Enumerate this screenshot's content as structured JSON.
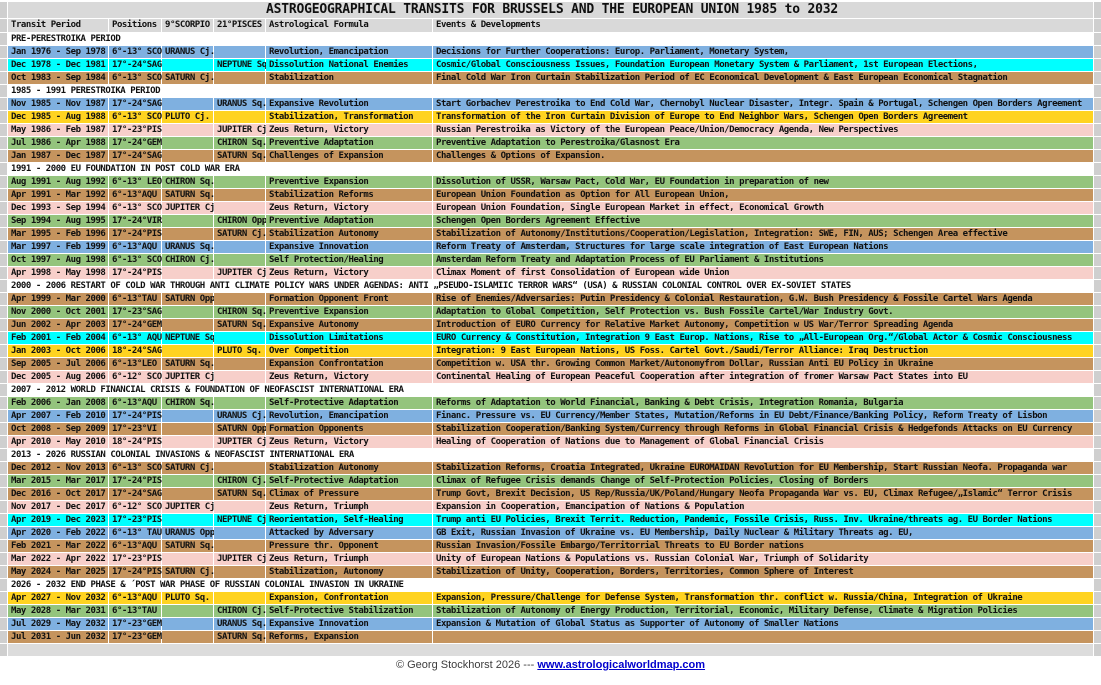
{
  "title": "ASTROGEOGRAPHICAL TRANSITS FOR BRUSSELS AND THE EUROPEAN UNION  1985 to 2032",
  "columns": [
    "Transit Period",
    "Positions",
    "9°SCORPIO",
    "21°PISCES",
    "Astrological Formula",
    "Events & Developments"
  ],
  "palette": {
    "blue": "#7fb0e0",
    "cyan": "#00ffff",
    "tan": "#c5945e",
    "yellow": "#ffd321",
    "pink": "#f7cfca",
    "green": "#94c47d",
    "header_bg": "#d9d9d9",
    "gutter": "#cfcfcf",
    "section_bg": "#ffffff"
  },
  "sections": [
    {
      "label": "PRE-PERESTROIKA PERIOD",
      "rows": [
        {
          "period": "Jan 1976 - Sep 1978",
          "positions": "6°-13° SCO",
          "scorpio": "URANUS Cj.",
          "pisces": "",
          "formula": "Revolution, Emancipation",
          "events": "Decisions for Further Cooperations: Europ. Parliament, Monetary System,",
          "color": "blue"
        },
        {
          "period": "Dec 1978 - Dec 1981",
          "positions": "17°-24°SAG",
          "scorpio": "",
          "pisces": "NEPTUNE Sq.",
          "formula": "Dissolution National Enemies",
          "events": "Cosmic/Global Consciousness Issues, Foundation European Monetary System & Parliament, 1st European Elections,",
          "color": "cyan"
        },
        {
          "period": "Oct 1983 - Sep 1984",
          "positions": "6°-13° SCO",
          "scorpio": "SATURN Cj.",
          "pisces": "",
          "formula": "Stabilization",
          "events": "Final Cold War Iron Curtain Stabilization Period of EC Economical Development & East European Economical Stagnation",
          "color": "tan"
        }
      ]
    },
    {
      "label": "1985 - 1991    PERESTROIKA PERIOD",
      "rows": [
        {
          "period": "Nov 1985 - Nov 1987",
          "positions": "17°-24°SAG",
          "scorpio": "",
          "pisces": "URANUS Sq.",
          "formula": "Expansive Revolution",
          "events": "Start Gorbachev Perestroika to End Cold War, Chernobyl Nuclear Disaster, Integr. Spain & Portugal, Schengen Open Borders Agreement",
          "color": "blue"
        },
        {
          "period": "Dec 1985 - Aug 1988",
          "positions": "6°-13° SCO",
          "scorpio": "PLUTO Cj.",
          "pisces": "",
          "formula": "Stabilization, Transformation",
          "events": "Transformation of the Iron Curtain Division of Europe to End Neighbor Wars, Schengen Open Borders Agreement",
          "color": "yellow"
        },
        {
          "period": "May 1986 - Feb 1987",
          "positions": "17°-23°PIS",
          "scorpio": "",
          "pisces": "JUPITER Cj.",
          "formula": "Zeus Return, Victory",
          "events": "Russian Perestroika as Victory of the European Peace/Union/Democracy Agenda, New Perspectives",
          "color": "pink"
        },
        {
          "period": "Jul 1986 - Apr 1988",
          "positions": "17°-24°GEM",
          "scorpio": "",
          "pisces": "CHIRON Sq.",
          "formula": "Preventive Adaptation",
          "events": "Preventive Adaptation to Perestroika/Glasnost Era",
          "color": "green"
        },
        {
          "period": "Jan 1987 - Dec 1987",
          "positions": "17°-24°SAG",
          "scorpio": "",
          "pisces": "SATURN Sq.",
          "formula": "Challenges of Expansion",
          "events": "Challenges & Options of Expansion.",
          "color": "tan"
        }
      ]
    },
    {
      "label": "1991 - 2000    EU FOUNDATION IN POST COLD WAR ERA",
      "rows": [
        {
          "period": "Aug 1991 - Aug 1992",
          "positions": "6°-13° LEO",
          "scorpio": "CHIRON Sq.",
          "pisces": "",
          "formula": "Preventive Expansion",
          "events": "Dissolution of USSR, Warsaw Pact, Cold War, EU Foundation in preparation of new",
          "color": "green"
        },
        {
          "period": "Apr 1991 - Mar 1992",
          "positions": "6°-13°AQU",
          "scorpio": "SATURN Sq.",
          "pisces": "",
          "formula": "Stabilization Reforms",
          "events": "European Union Foundation as Option for All European Union,",
          "color": "tan"
        },
        {
          "period": "Dec 1993 - Sep 1994",
          "positions": "6°-13° SCO",
          "scorpio": "JUPITER Cj.",
          "pisces": "",
          "formula": "Zeus Return, Victory",
          "events": "European Union Foundation, Single European Market in effect, Economical Growth",
          "color": "pink"
        },
        {
          "period": "Sep 1994 - Aug 1995",
          "positions": "17°-24°VIR",
          "scorpio": "",
          "pisces": "CHIRON Opp.",
          "formula": "Preventive Adaptation",
          "events": "Schengen Open Borders Agreement Effective",
          "color": "green"
        },
        {
          "period": "Mar 1995 - Feb 1996",
          "positions": "17°-24°PIS",
          "scorpio": "",
          "pisces": "SATURN Cj.",
          "formula": "Stabilization Autonomy",
          "events": "Stabilization of Autonomy/Institutions/Cooperation/Legislation, Integration: SWE, FIN, AUS; Schengen Area effective",
          "color": "tan"
        },
        {
          "period": "Mar 1997 - Feb 1999",
          "positions": "6°-13°AQU",
          "scorpio": "URANUS Sq.",
          "pisces": "",
          "formula": "Expansive Innovation",
          "events": "Reform Treaty of Amsterdam, Structures for large scale integration of East European Nations",
          "color": "blue"
        },
        {
          "period": "Oct 1997 - Aug 1998",
          "positions": "6°-13° SCO",
          "scorpio": "CHIRON Cj.",
          "pisces": "",
          "formula": "Self Protection/Healing",
          "events": "Amsterdam Reform Treaty and Adaptation Process of EU Parliament & Institutions",
          "color": "green"
        },
        {
          "period": "Apr 1998 - May 1998",
          "positions": "17°-24°PIS",
          "scorpio": "",
          "pisces": "JUPITER Cj.",
          "formula": "Zeus Return, Victory",
          "events": "Climax Moment of first Consolidation of European wide Union",
          "color": "pink"
        }
      ]
    },
    {
      "label": "2000 - 2006    RESTART OF COLD WAR THROUGH ANTI CLIMATE POLICY WARS UNDER AGENDAS: ANTI „PSEUDO-ISLAMIIC TERROR WARS“ (USA) & RUSSIAN COLONIAL CONTROL OVER EX-SOVIET STATES",
      "rows": [
        {
          "period": "Apr 1999 - Mar 2000",
          "positions": "6°-13°TAU",
          "scorpio": "SATURN Opp.",
          "pisces": "",
          "formula": "Formation Opponent Front",
          "events": "Rise of Enemies/Adversaries: Putin Presidency & Colonial Restauration, G.W. Bush Presidency & Fossile Cartel Wars Agenda",
          "color": "tan"
        },
        {
          "period": "Nov 2000 - Oct 2001",
          "positions": "17°-23°SAG",
          "scorpio": "",
          "pisces": "CHIRON Sq.",
          "formula": "Preventive Expansion",
          "events": "Adaptation to Global Competition, Self Protection vs. Bush Fossile Cartel/War Industry Govt.",
          "color": "green"
        },
        {
          "period": "Jun 2002 - Apr 2003",
          "positions": "17°-24°GEM",
          "scorpio": "",
          "pisces": "SATURN Sq.",
          "formula": "Expansive Autonomy",
          "events": "Introduction of EURO Currency for Relative Market Autonomy, Competition w US War/Terror Spreading Agenda",
          "color": "tan"
        },
        {
          "period": "Feb 2001 - Feb 2004",
          "positions": "6°-13° AQU",
          "scorpio": "NEPTUNE Sq.",
          "pisces": "",
          "formula": "Dissolution Limitations",
          "events": "EURO Currency & Constitution, Integration 9 East Europ. Nations, Rise to „All-European Org.“/Global Actor & Cosmic Consciousness",
          "color": "cyan"
        },
        {
          "period": "Jan 2003 - Oct 2006",
          "positions": "18°-24°SAG",
          "scorpio": "",
          "pisces": "PLUTO Sq.",
          "formula": "Over Competition",
          "events": "Integration: 9 East European Nations, US Foss. Cartel Govt./Saudi/Terror Alliance: Iraq Destruction",
          "color": "yellow"
        },
        {
          "period": "Sep 2005 - Jul 2006",
          "positions": "6°-13°LEO",
          "scorpio": "SATURN Sq.",
          "pisces": "",
          "formula": "Expansion Confrontation",
          "events": "Competition w. USA thr. Growing Common Market/Autonomyfrom Dollar, Russian Anti EU Policy in Ukraine",
          "color": "tan"
        },
        {
          "period": "Dec 2005 - Aug 2006",
          "positions": "6°-12° SCO",
          "scorpio": "JUPITER Cj.",
          "pisces": "",
          "formula": "Zeus Return, Victory",
          "events": "Continental Healing of European Peaceful Cooperation after integration of fromer Warsaw Pact States into EU",
          "color": "pink"
        }
      ]
    },
    {
      "label": "2007 - 2012    WORLD FINANCIAL CRISIS & FOUNDATION OF NEOFASCIST INTERNATIONAL ERA",
      "rows": [
        {
          "period": "Feb 2006 - Jan 2008",
          "positions": "6°-13°AQU",
          "scorpio": "CHIRON Sq.",
          "pisces": "",
          "formula": "Self-Protective Adaptation",
          "events": "Reforms of Adaptation to World Financial, Banking & Debt Crisis, Integration Romania, Bulgaria",
          "color": "green"
        },
        {
          "period": "Apr 2007 - Feb 2010",
          "positions": "17°-24°PIS",
          "scorpio": "",
          "pisces": "URANUS Cj.",
          "formula": "Revolution, Emancipation",
          "events": "Financ. Pressure vs. EU Currency/Member States, Mutation/Reforms in EU Debt/Finance/Banking Policy, Reform Treaty of Lisbon",
          "color": "blue"
        },
        {
          "period": "Oct 2008 - Sep 2009",
          "positions": "17°-23°VI",
          "scorpio": "",
          "pisces": "SATURN Opp.",
          "formula": "Formation Opponents",
          "events": "Stabilization Cooperation/Banking System/Currency through Reforms in Global Financial Crisis & Hedgefonds Attacks on EU Currency",
          "color": "tan"
        },
        {
          "period": "Apr 2010 - May 2010",
          "positions": "18°-24°PIS",
          "scorpio": "",
          "pisces": "JUPITER Cj.",
          "formula": "Zeus Return, Victory",
          "events": "Healing of Cooperation of Nations due to Management of Global Financial Crisis",
          "color": "pink"
        }
      ]
    },
    {
      "label": "2013 - 2026   RUSSIAN COLONIAL INVASIONS & NEOFASCIST INTERNATIONAL ERA",
      "rows": [
        {
          "period": "Dec 2012 - Nov 2013",
          "positions": "6°-13° SCO",
          "scorpio": "SATURN Cj.",
          "pisces": "",
          "formula": "Stabilization Autonomy",
          "events": "Stabilization Reforms, Croatia Integrated, Ukraine EUROMAIDAN Revolution for EU Membership, Start Russian Neofa. Propaganda war",
          "color": "tan"
        },
        {
          "period": "Mar 2015 - Mar 2017",
          "positions": "17°-24°PIS",
          "scorpio": "",
          "pisces": "CHIRON Cj.",
          "formula": "Self-Protective Adaptation",
          "events": "Climax of Refugee Crisis demands Change of Self-Protection Policies, Closing of Borders",
          "color": "green"
        },
        {
          "period": "Dec 2016 - Oct 2017",
          "positions": "17°-24°SAG",
          "scorpio": "",
          "pisces": "SATURN Sq.",
          "formula": "Climax of Pressure",
          "events": "Trump Govt, Brexit Decision, US Rep/Russia/UK/Poland/Hungary Neofa Propaganda War vs. EU, Climax Refugee/„Islamic“ Terror Crisis",
          "color": "tan"
        },
        {
          "period": "Nov 2017 - Dec 2017",
          "positions": "6°-12° SCO",
          "scorpio": "JUPITER Cj.",
          "pisces": "",
          "formula": "Zeus Return, Triumph",
          "events": "Expansion in Cooperation, Emancipation of Nations & Population",
          "color": "pink"
        },
        {
          "period": "Apr 2019 - Dec 2023",
          "positions": "17°-23°PIS",
          "scorpio": "",
          "pisces": "NEPTUNE Cj.",
          "formula": "Reorientation, Self-Healing",
          "events": "Trump anti EU Policies, Brexit Territ. Reduction, Pandemic, Fossile Crisis, Russ. Inv. Ukraine/threats ag. EU Border Nations",
          "color": "cyan"
        },
        {
          "period": "Apr 2020 - Feb 2022",
          "positions": "6°-13° TAU",
          "scorpio": "URANUS Opp.",
          "pisces": "",
          "formula": "Attacked by Adversary",
          "events": "GB Exit, Russian Invasion of Ukraine vs. EU Membership, Daily Nuclear & Military Threats ag. EU,",
          "color": "blue"
        },
        {
          "period": "Feb 2021 - Mar 2022",
          "positions": "6°-13°AQU",
          "scorpio": "SATURN Sq.",
          "pisces": "",
          "formula": "Pressure thr. Opponent",
          "events": "Russian Invasion/Fossile Embargo/Territorrial Threats to EU Border nations",
          "color": "tan"
        },
        {
          "period": "Mar 2022 - Apr 2022",
          "positions": "17°-23°PIS",
          "scorpio": "",
          "pisces": "JUPITER Cj.",
          "formula": "Zeus Return, Triumph",
          "events": "Unity of European Nations & Populations vs. Russian Colonial War, Triumph of Solidarity",
          "color": "pink"
        },
        {
          "period": "May 2024 - Mar 2025",
          "positions": "17°-24°PIS",
          "scorpio": "SATURN Cj.",
          "pisces": "",
          "formula": "Stabilization, Autonomy",
          "events": "Stabilization of Unity, Cooperation, Borders, Territories, Common Sphere of Interest",
          "color": "tan"
        }
      ]
    },
    {
      "label": "2026 - 2032     END PHASE & ´POST WAR PHASE OF RUSSIAN COLONIAL INVASION IN UKRAINE",
      "rows": [
        {
          "period": "Apr 2027 - Nov 2032",
          "positions": "6°-13°AQU",
          "scorpio": "PLUTO Sq.",
          "pisces": "",
          "formula": "Expansion, Confrontation",
          "events": "Expansion, Pressure/Challenge for Defense System, Transformation thr. conflict w. Russia/China, Integration of Ukraine",
          "color": "yellow"
        },
        {
          "period": "May 2028 - Mar 2031",
          "positions": "6°-13°TAU",
          "scorpio": "",
          "pisces": "CHIRON Cj.",
          "formula": "Self-Protective Stabilization",
          "events": "Stabilization of Autonomy of Energy Production, Territorial, Economic, Military Defense, Climate & Migration Policies",
          "color": "green"
        },
        {
          "period": "Jul 2029 - May 2032",
          "positions": "17°-23°GEM",
          "scorpio": "",
          "pisces": "URANUS Sq.",
          "formula": "Expansive Innovation",
          "events": "Expansion & Mutation of Global Status as Supporter of Autonomy of Smaller Nations",
          "color": "blue"
        },
        {
          "period": "Jul 2031 - Jun 2032",
          "positions": "17°-23°GEM",
          "scorpio": "",
          "pisces": "SATURN Sq.",
          "formula": "Reforms, Expansion",
          "events": "",
          "color": "tan"
        }
      ]
    }
  ],
  "footer": {
    "copyright": "© Georg Stockhorst 2026 ---",
    "link": "www.astrologicalworldmap.com"
  }
}
